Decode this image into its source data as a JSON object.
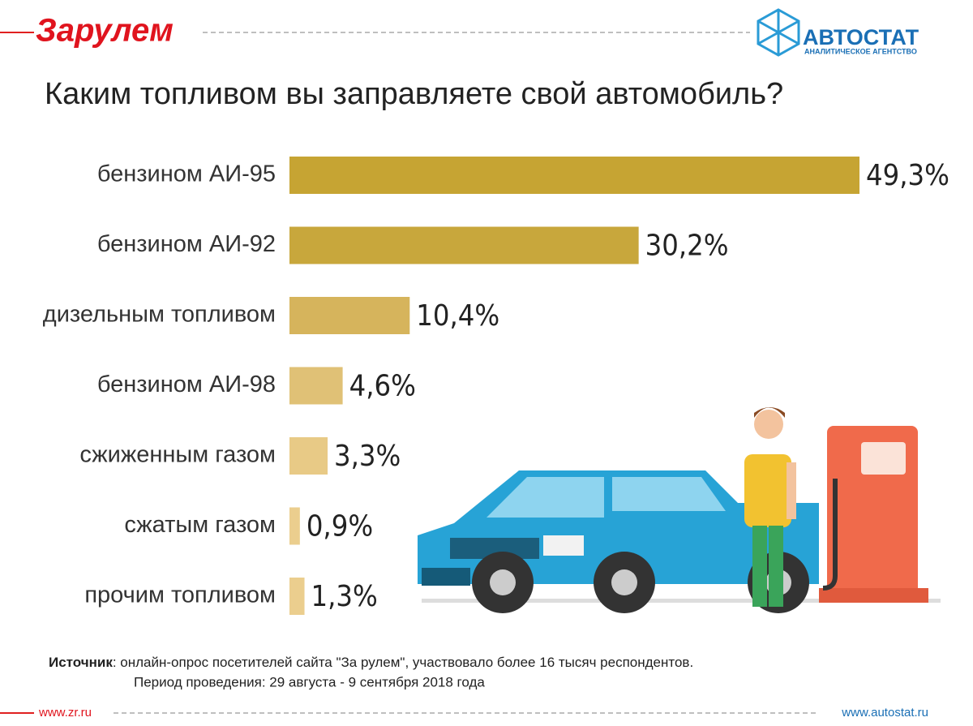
{
  "header": {
    "logo_left": "Зарулем",
    "logo_right": "АВТОСТАТ",
    "logo_right_sub": "АНАЛИТИЧЕСКОЕ АГЕНТСТВО"
  },
  "chart_data": {
    "type": "bar",
    "orientation": "horizontal",
    "title": "Каким топливом вы заправляете свой автомобиль?",
    "categories": [
      "бензином АИ-95",
      "бензином АИ-92",
      "дизельным топливом",
      "бензином АИ-98",
      "сжиженным газом",
      "сжатым газом",
      "прочим топливом"
    ],
    "values": [
      49.3,
      30.2,
      10.4,
      4.6,
      3.3,
      0.9,
      1.3
    ],
    "value_labels": [
      "49,3%",
      "30,2%",
      "10,4%",
      "4,6%",
      "3,3%",
      "0,9%",
      "1,3%"
    ],
    "colors": [
      "#c6a433",
      "#c8a73c",
      "#d6b45c",
      "#e0c176",
      "#e8ca86",
      "#ebce8e",
      "#ebce8e"
    ]
  },
  "footer": {
    "source_label": "Источник",
    "source_text": ": онлайн-опрос посетителей сайта \"За рулем\", участвовало более 16 тысяч респондентов.",
    "period": "Период проведения: 29 августа - 9 сентября 2018 года",
    "url_left": "www.zr.ru",
    "url_right": "www.autostat.ru"
  }
}
